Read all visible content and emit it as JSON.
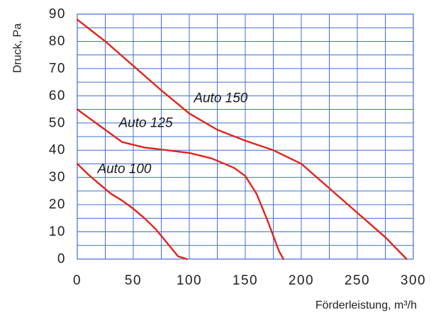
{
  "chart_data": {
    "type": "line",
    "xlabel": "Förderleistung, m³/h",
    "ylabel": "Druck, Pa",
    "xlim": [
      0,
      300
    ],
    "ylim": [
      0,
      90
    ],
    "x_ticks": [
      0,
      50,
      100,
      150,
      200,
      250,
      300
    ],
    "y_ticks": [
      0,
      10,
      20,
      30,
      40,
      50,
      60,
      70,
      80,
      90
    ],
    "x_tick_labels": [
      "0",
      "50",
      "100",
      "150",
      "200",
      "250",
      "300"
    ],
    "y_tick_labels": [
      "0",
      "10",
      "20",
      "30",
      "40",
      "50",
      "60",
      "70",
      "80",
      "90"
    ],
    "grid": true,
    "grid_minor_x_step": 25,
    "grid_minor_y_step": 5,
    "colors": {
      "line": "#e2231a",
      "grid": "#3f6fd0",
      "axis": "#1f1f1f"
    },
    "series": [
      {
        "name": "Auto 100",
        "x": [
          0,
          10,
          20,
          30,
          40,
          50,
          60,
          70,
          80,
          90,
          98
        ],
        "y": [
          35,
          31,
          27.5,
          24,
          21.5,
          18.5,
          15,
          11,
          6,
          1,
          0
        ]
      },
      {
        "name": "Auto 125",
        "x": [
          0,
          20,
          40,
          60,
          80,
          100,
          120,
          140,
          150,
          160,
          170,
          180,
          184
        ],
        "y": [
          55,
          49,
          43,
          41,
          40,
          39,
          37,
          33.5,
          30.5,
          24,
          14,
          3,
          0
        ]
      },
      {
        "name": "Auto 150",
        "x": [
          0,
          25,
          50,
          75,
          100,
          125,
          150,
          175,
          200,
          225,
          250,
          275,
          294
        ],
        "y": [
          88,
          80,
          71,
          62,
          53.5,
          47.5,
          43.5,
          40,
          35,
          26,
          17,
          8,
          0
        ]
      }
    ],
    "series_labels": [
      {
        "text": "Auto 100",
        "x": 18,
        "y": 33
      },
      {
        "text": "Auto 125",
        "x": 37,
        "y": 50
      },
      {
        "text": "Auto 150",
        "x": 104,
        "y": 59
      }
    ]
  }
}
